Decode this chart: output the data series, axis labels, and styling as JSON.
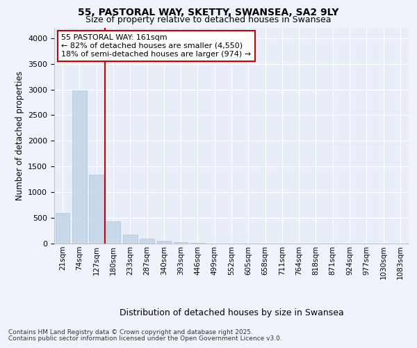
{
  "title_line1": "55, PASTORAL WAY, SKETTY, SWANSEA, SA2 9LY",
  "title_line2": "Size of property relative to detached houses in Swansea",
  "xlabel": "Distribution of detached houses by size in Swansea",
  "ylabel": "Number of detached properties",
  "categories": [
    "21sqm",
    "74sqm",
    "127sqm",
    "180sqm",
    "233sqm",
    "287sqm",
    "340sqm",
    "393sqm",
    "446sqm",
    "499sqm",
    "552sqm",
    "605sqm",
    "658sqm",
    "711sqm",
    "764sqm",
    "818sqm",
    "871sqm",
    "924sqm",
    "977sqm",
    "1030sqm",
    "1083sqm"
  ],
  "values": [
    600,
    2980,
    1340,
    430,
    175,
    100,
    50,
    30,
    20,
    5,
    0,
    0,
    0,
    0,
    0,
    0,
    0,
    0,
    0,
    0,
    0
  ],
  "bar_color": "#c8d8eb",
  "bar_edge_color": "#b0c4d8",
  "vline_color": "#cc0000",
  "vline_pos": 2.5,
  "annotation_line1": "55 PASTORAL WAY: 161sqm",
  "annotation_line2": "← 82% of detached houses are smaller (4,550)",
  "annotation_line3": "18% of semi-detached houses are larger (974) →",
  "annotation_box_color": "#ffffff",
  "annotation_box_edge": "#cc0000",
  "ylim": [
    0,
    4200
  ],
  "yticks": [
    0,
    500,
    1000,
    1500,
    2000,
    2500,
    3000,
    3500,
    4000
  ],
  "footer_line1": "Contains HM Land Registry data © Crown copyright and database right 2025.",
  "footer_line2": "Contains public sector information licensed under the Open Government Licence v3.0.",
  "bg_color": "#f0f4fa",
  "plot_bg_color": "#e8eef8"
}
